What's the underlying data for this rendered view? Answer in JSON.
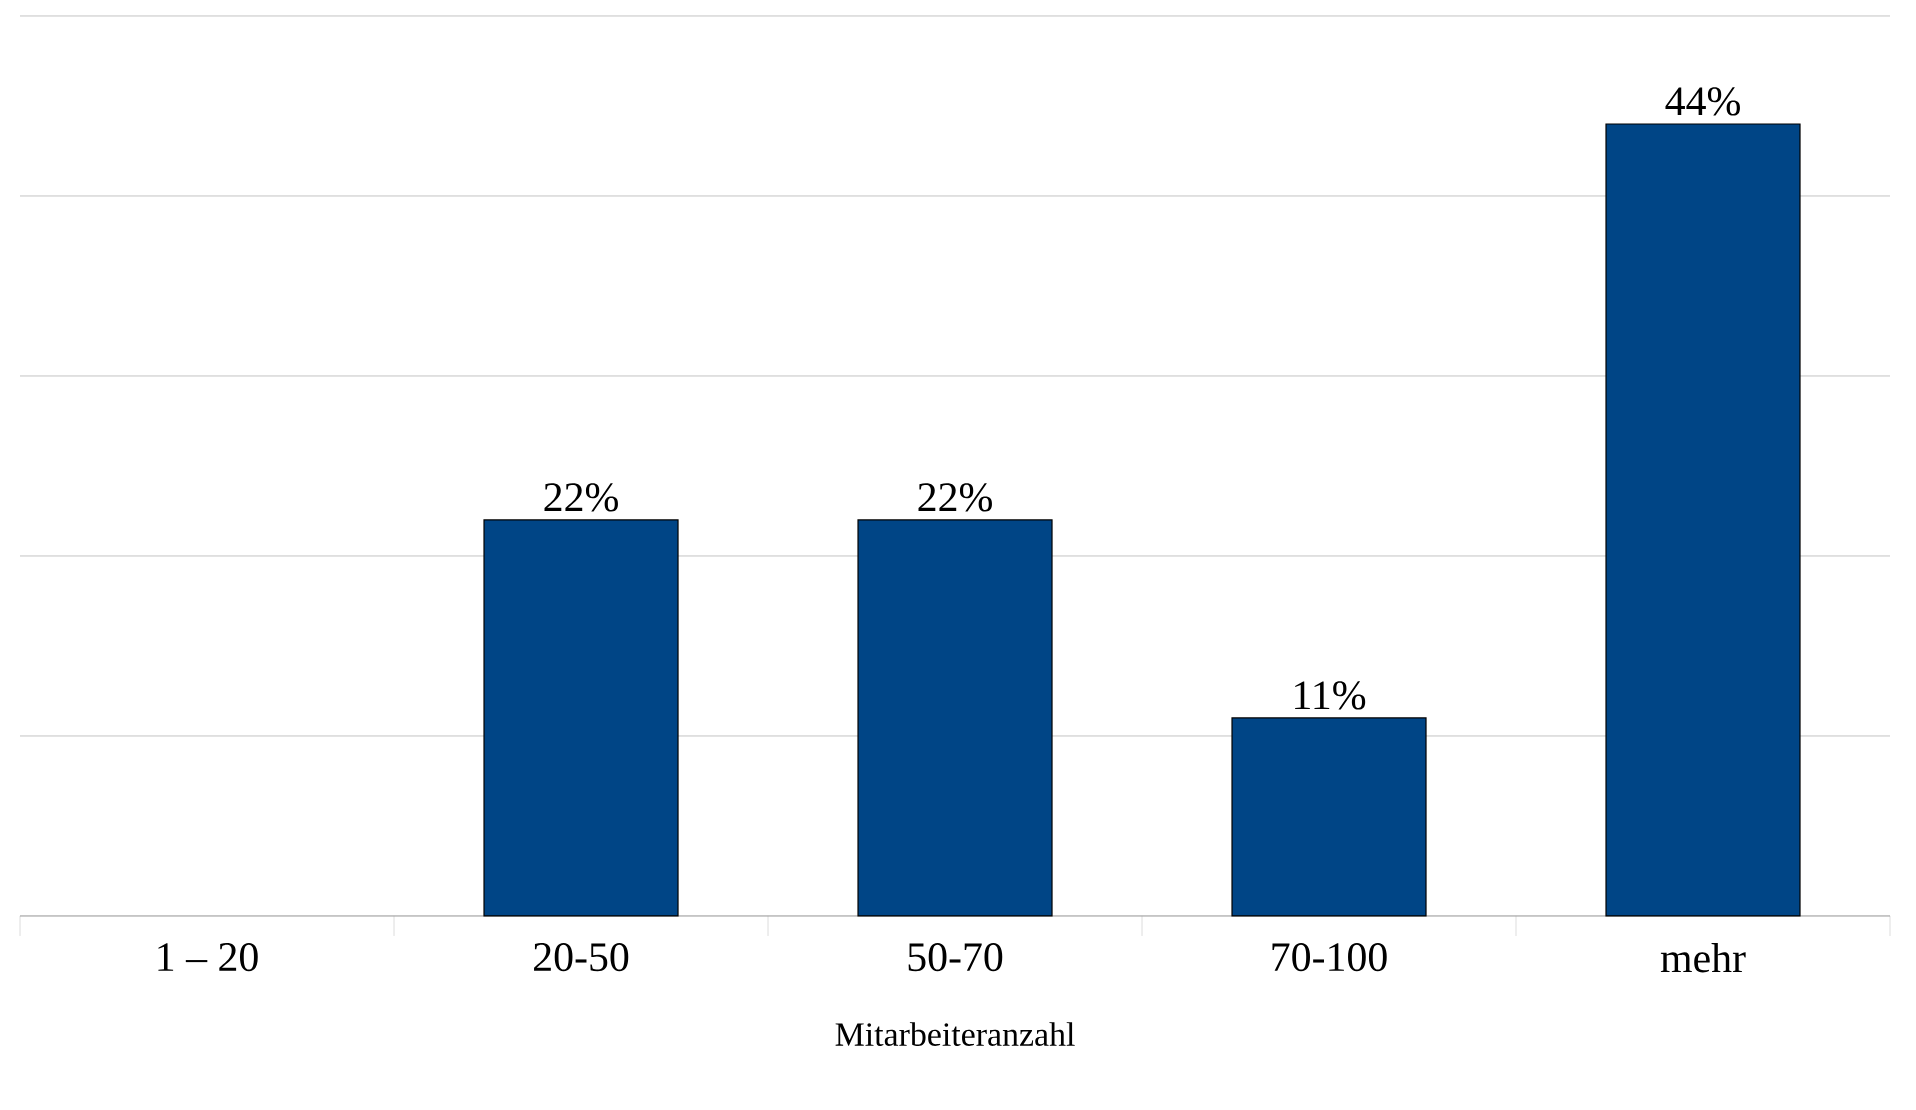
{
  "chart_data": {
    "type": "bar",
    "xlabel": "Mitarbeiteranzahl",
    "categories": [
      "1 – 20",
      "20-50",
      "50-70",
      "70-100",
      "mehr"
    ],
    "values": [
      null,
      22,
      22,
      11,
      44
    ],
    "value_labels": [
      null,
      "22%",
      "22%",
      "11%",
      "44%"
    ],
    "color": "#004586",
    "ylim": [
      0,
      50
    ],
    "yticks": [
      {
        "value": 0,
        "label": null
      },
      {
        "value": 10,
        "label": null
      },
      {
        "value": 20,
        "label": null
      },
      {
        "value": 30,
        "label": null
      },
      {
        "value": 40,
        "label": null
      },
      {
        "value": 50,
        "label": null
      }
    ],
    "grid": "y",
    "tick_labels": "x"
  }
}
